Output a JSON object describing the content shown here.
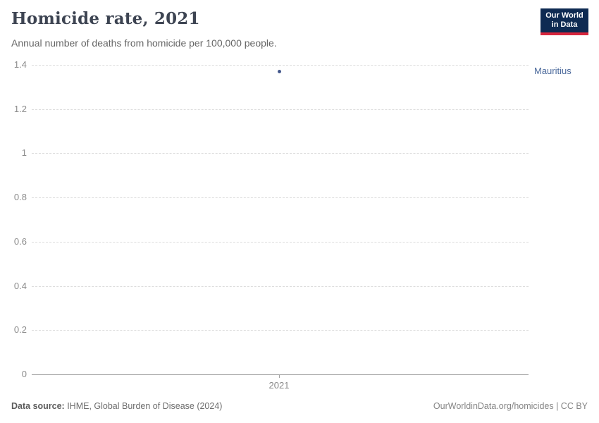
{
  "header": {
    "title": "Homicide rate, 2021",
    "subtitle": "Annual number of deaths from homicide per 100,000 people.",
    "logo": {
      "line1": "Our World",
      "line2": "in Data"
    }
  },
  "chart_data": {
    "type": "scatter",
    "title": "Homicide rate, 2021",
    "x": [
      2021
    ],
    "xticks": [
      "2021"
    ],
    "series": [
      {
        "name": "Mauritius",
        "values": [
          1.37
        ],
        "color": "#4C6A9C"
      }
    ],
    "xlabel": "",
    "ylabel": "",
    "ylim": [
      0,
      1.4
    ],
    "yticks": [
      0,
      0.2,
      0.4,
      0.6,
      0.8,
      1,
      1.2,
      1.4
    ],
    "ytick_labels": [
      "0",
      "0.2",
      "0.4",
      "0.6",
      "0.8",
      "1",
      "1.2",
      "1.4"
    ],
    "grid": "horizontal-dashed",
    "legend_position": "right-of-point"
  },
  "footer": {
    "source_label": "Data source:",
    "source_text": " IHME, Global Burden of Disease (2024)",
    "attribution": "OurWorldinData.org/homicides | CC BY"
  },
  "colors": {
    "accent": "#4C6A9C",
    "point": "#44588C",
    "logo_navy": "#0E2A52",
    "logo_red": "#D7263D"
  }
}
